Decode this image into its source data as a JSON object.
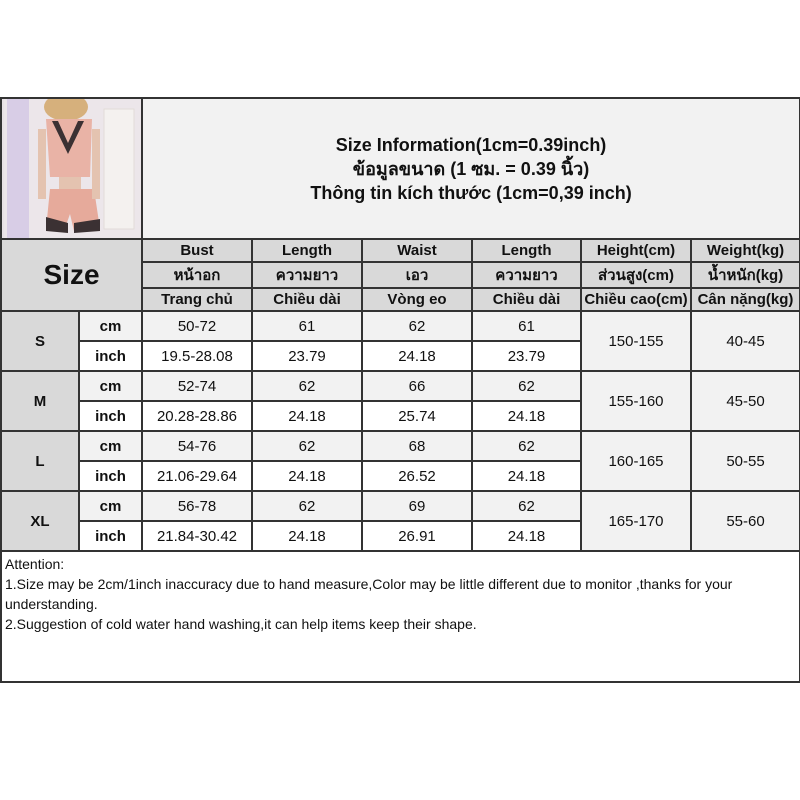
{
  "title": {
    "line1": "Size Information(1cm=0.39inch)",
    "line2": "ข้อมูลขนาด (1 ซม. = 0.39 นิ้ว)",
    "line3": "Thông tin kích thước (1cm=0,39 inch)"
  },
  "size_label": "Size",
  "headers": [
    [
      "Bust",
      "หน้าอก",
      "Trang chủ"
    ],
    [
      "Length",
      "ความยาว",
      "Chiều dài"
    ],
    [
      "Waist",
      "เอว",
      "Vòng eo"
    ],
    [
      "Length",
      "ความยาว",
      "Chiều dài"
    ],
    [
      "Height(cm)",
      "ส่วนสูง(cm)",
      "Chiều cao(cm)"
    ],
    [
      "Weight(kg)",
      "น้ำหนัก(kg)",
      "Cân nặng(kg)"
    ]
  ],
  "rows": [
    {
      "size": "S",
      "cm": [
        "50-72",
        "61",
        "62",
        "61"
      ],
      "inch": [
        "19.5-28.08",
        "23.79",
        "24.18",
        "23.79"
      ],
      "height": "150-155",
      "weight": "40-45"
    },
    {
      "size": "M",
      "cm": [
        "52-74",
        "62",
        "66",
        "62"
      ],
      "inch": [
        "20.28-28.86",
        "24.18",
        "25.74",
        "24.18"
      ],
      "height": "155-160",
      "weight": "45-50"
    },
    {
      "size": "L",
      "cm": [
        "54-76",
        "62",
        "68",
        "62"
      ],
      "inch": [
        "21.06-29.64",
        "24.18",
        "26.52",
        "24.18"
      ],
      "height": "160-165",
      "weight": "50-55"
    },
    {
      "size": "XL",
      "cm": [
        "56-78",
        "62",
        "69",
        "62"
      ],
      "inch": [
        "21.84-30.42",
        "24.18",
        "26.91",
        "24.18"
      ],
      "height": "165-170",
      "weight": "55-60"
    }
  ],
  "units": {
    "cm": "cm",
    "inch": "inch"
  },
  "attention": {
    "heading": "Attention:",
    "line1": "1.Size may be 2cm/1inch inaccuracy due to hand measure,Color may be little different due to monitor ,thanks for your understanding.",
    "line2": "2.Suggestion of cold water hand washing,it can help items keep their shape."
  },
  "colors": {
    "header_bg": "#d9d9d9",
    "cm_row_bg": "#f2f2f2",
    "border": "#333333",
    "garment": "#e9b3a6"
  }
}
